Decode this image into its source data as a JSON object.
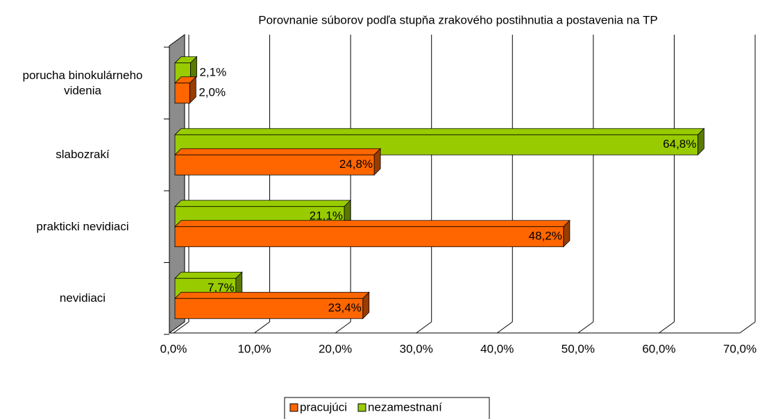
{
  "chart_data": {
    "type": "bar",
    "orientation": "horizontal",
    "three_d": true,
    "title": "Porovnanie súborov podľa stupňa zrakového postihnutia a postavenia na TP",
    "categories": [
      "porucha binokulárneho videnia",
      "slabozrakí",
      "prakticki nevidiaci",
      "nevidiaci"
    ],
    "series": [
      {
        "name": "pracujúci",
        "color": "#ff6600",
        "values": [
          2.0,
          24.8,
          48.2,
          23.4
        ],
        "value_labels": [
          "2,0%",
          "24,8%",
          "48,2%",
          "23,4%"
        ]
      },
      {
        "name": "nezamestnaní",
        "color": "#99cc00",
        "values": [
          2.1,
          64.8,
          21.1,
          7.7
        ],
        "value_labels": [
          "2,1%",
          "64,8%",
          "21,1%",
          "7,7%"
        ]
      }
    ],
    "xlim": [
      0,
      70
    ],
    "xticks": [
      {
        "value": 0,
        "label": "0,0%"
      },
      {
        "value": 10,
        "label": "10,0%"
      },
      {
        "value": 20,
        "label": "20,0%"
      },
      {
        "value": 30,
        "label": "30,0%"
      },
      {
        "value": 40,
        "label": "40,0%"
      },
      {
        "value": 50,
        "label": "50,0%"
      },
      {
        "value": 60,
        "label": "60,0%"
      },
      {
        "value": 70,
        "label": "70,0%"
      }
    ],
    "grid": true,
    "legend": "bottom"
  }
}
